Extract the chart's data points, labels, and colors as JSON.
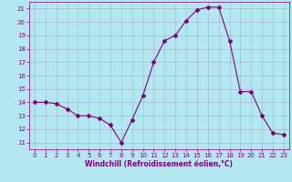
{
  "x": [
    0,
    1,
    2,
    3,
    4,
    5,
    6,
    7,
    8,
    9,
    10,
    11,
    12,
    13,
    14,
    15,
    16,
    17,
    18,
    19,
    20,
    21,
    22,
    23
  ],
  "y": [
    14.0,
    14.0,
    13.9,
    13.5,
    13.0,
    13.0,
    12.8,
    12.3,
    11.0,
    12.7,
    14.5,
    17.0,
    18.6,
    19.0,
    20.1,
    20.9,
    21.1,
    21.1,
    18.6,
    14.8,
    14.8,
    13.0,
    11.7,
    11.6
  ],
  "line_color": "#800080",
  "marker": "D",
  "marker_size": 2.0,
  "bg_color": "#b3e8f0",
  "grid_color": "#9999bb",
  "xlim": [
    -0.5,
    23.5
  ],
  "ylim": [
    10.5,
    21.5
  ],
  "yticks": [
    11,
    12,
    13,
    14,
    15,
    16,
    17,
    18,
    19,
    20,
    21
  ],
  "xticks": [
    0,
    1,
    2,
    3,
    4,
    5,
    6,
    7,
    8,
    9,
    10,
    11,
    12,
    13,
    14,
    15,
    16,
    17,
    18,
    19,
    20,
    21,
    22,
    23
  ],
  "xlabel": "Windchill (Refroidissement éolien,°C)",
  "xlabel_color": "#800080",
  "tick_color": "#800080",
  "tick_fontsize": 5.0,
  "xlabel_fontsize": 5.5,
  "linewidth": 0.8
}
